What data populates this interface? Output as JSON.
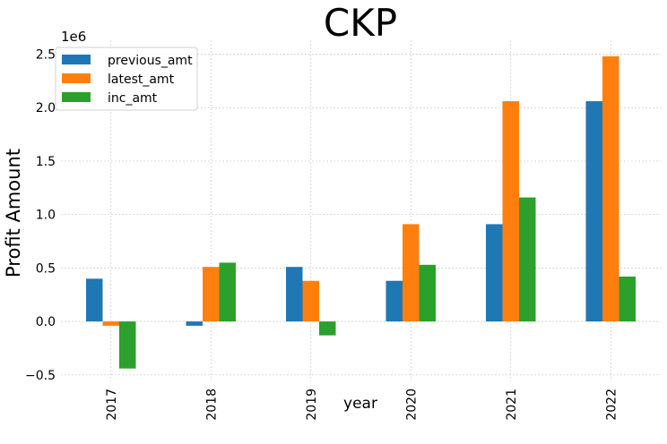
{
  "chart_data": {
    "type": "bar",
    "title": "CKP",
    "xlabel": "year",
    "ylabel": "Profit Amount",
    "offset_label": "1e6",
    "categories": [
      "2017",
      "2018",
      "2019",
      "2020",
      "2021",
      "2022"
    ],
    "series": [
      {
        "name": "previous_amt",
        "color": "#1f77b4",
        "values": [
          400000,
          -40000,
          510000,
          380000,
          910000,
          2060000
        ]
      },
      {
        "name": "latest_amt",
        "color": "#ff7f0e",
        "values": [
          -40000,
          510000,
          380000,
          910000,
          2060000,
          2480000
        ]
      },
      {
        "name": "inc_amt",
        "color": "#2ca02c",
        "values": [
          -440000,
          550000,
          -130000,
          530000,
          1160000,
          420000
        ]
      }
    ],
    "yticks": [
      -500000,
      0,
      500000,
      1000000,
      1500000,
      2000000,
      2500000
    ],
    "ytick_labels": [
      "−0.5",
      "0.0",
      "0.5",
      "1.0",
      "1.5",
      "2.0",
      "2.5"
    ],
    "ylim": [
      -560000,
      2630000
    ],
    "grid": true,
    "legend_position": "top-left"
  }
}
